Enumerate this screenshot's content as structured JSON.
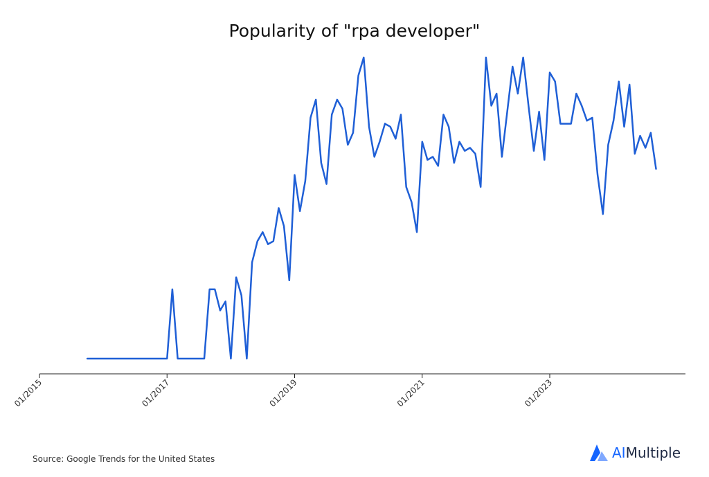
{
  "chart_data": {
    "type": "line",
    "title": "Popularity of \"rpa developer\"",
    "xlabel": "",
    "ylabel": "",
    "x_ticks": [
      "01/2015",
      "01/2017",
      "01/2019",
      "01/2021",
      "01/2023"
    ],
    "x_range": [
      "2015-01",
      "2025-02"
    ],
    "y_range": [
      0,
      100
    ],
    "grid": false,
    "legend": "none",
    "line_color": "#1f5fd6",
    "series": [
      {
        "x": [
          "2015-10",
          "2015-11",
          "2015-12",
          "2016-01",
          "2016-02",
          "2016-03",
          "2016-04",
          "2016-05",
          "2016-06",
          "2016-07",
          "2016-08",
          "2016-09",
          "2016-10",
          "2016-11",
          "2016-12",
          "2017-01",
          "2017-02",
          "2017-03",
          "2017-04",
          "2017-05",
          "2017-06",
          "2017-07",
          "2017-08",
          "2017-09",
          "2017-10",
          "2017-11",
          "2017-12",
          "2018-01",
          "2018-02",
          "2018-03",
          "2018-04",
          "2018-05",
          "2018-06",
          "2018-07",
          "2018-08",
          "2018-09",
          "2018-10",
          "2018-11",
          "2018-12",
          "2019-01",
          "2019-02",
          "2019-03",
          "2019-04",
          "2019-05",
          "2019-06",
          "2019-07",
          "2019-08",
          "2019-09",
          "2019-10",
          "2019-11",
          "2019-12",
          "2020-01",
          "2020-02",
          "2020-03",
          "2020-04",
          "2020-05",
          "2020-06",
          "2020-07",
          "2020-08",
          "2020-09",
          "2020-10",
          "2020-11",
          "2020-12",
          "2021-01",
          "2021-02",
          "2021-03",
          "2021-04",
          "2021-05",
          "2021-06",
          "2021-07",
          "2021-08",
          "2021-09",
          "2021-10",
          "2021-11",
          "2021-12",
          "2022-01",
          "2022-02",
          "2022-03",
          "2022-04",
          "2022-05",
          "2022-06",
          "2022-07",
          "2022-08",
          "2022-09",
          "2022-10",
          "2022-11",
          "2022-12",
          "2023-01",
          "2023-02",
          "2023-03",
          "2023-04",
          "2023-05",
          "2023-06",
          "2023-07",
          "2023-08",
          "2023-09",
          "2023-10",
          "2023-11",
          "2023-12",
          "2024-01",
          "2024-02",
          "2024-03",
          "2024-04",
          "2024-05",
          "2024-06",
          "2024-07",
          "2024-08",
          "2024-09"
        ],
        "y": [
          0,
          0,
          0,
          0,
          0,
          0,
          0,
          0,
          0,
          0,
          0,
          0,
          0,
          0,
          0,
          0,
          23,
          0,
          0,
          0,
          0,
          0,
          0,
          23,
          23,
          16,
          19,
          0,
          27,
          21,
          0,
          32,
          39,
          42,
          38,
          39,
          50,
          44,
          26,
          61,
          49,
          59,
          80,
          86,
          65,
          58,
          81,
          86,
          83,
          71,
          75,
          94,
          100,
          77,
          67,
          72,
          78,
          77,
          73,
          81,
          57,
          52,
          42,
          72,
          66,
          67,
          64,
          81,
          77,
          65,
          72,
          69,
          70,
          68,
          57,
          100,
          84,
          88,
          67,
          82,
          97,
          88,
          100,
          84,
          69,
          82,
          66,
          95,
          92,
          78,
          78,
          78,
          88,
          84,
          79,
          80,
          61,
          48,
          71,
          79,
          92,
          77,
          91,
          68,
          74,
          70,
          75,
          63
        ]
      }
    ]
  },
  "source": "Source: Google Trends for the United States",
  "logo": {
    "ai": "AI",
    "rest": "Multiple",
    "icon": "aimultiple-logo-icon"
  }
}
